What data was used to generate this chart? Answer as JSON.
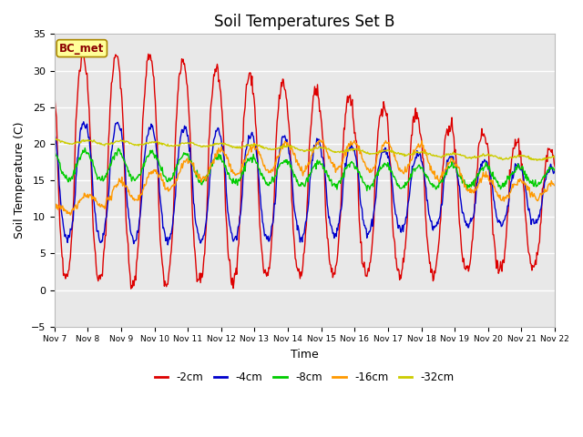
{
  "title": "Soil Temperatures Set B",
  "xlabel": "Time",
  "ylabel": "Soil Temperature (C)",
  "ylim": [
    -5,
    35
  ],
  "xlim": [
    0,
    15
  ],
  "annotation": "BC_met",
  "line_colors": {
    "-2cm": "#dd0000",
    "-4cm": "#0000cc",
    "-8cm": "#00cc00",
    "-16cm": "#ff9900",
    "-32cm": "#cccc00"
  },
  "legend_labels": [
    "-2cm",
    "-4cm",
    "-8cm",
    "-16cm",
    "-32cm"
  ],
  "xtick_labels": [
    "Nov 7",
    "Nov 8",
    "Nov 9",
    "Nov 10",
    "Nov 11",
    "Nov 12",
    "Nov 13",
    "Nov 14",
    "Nov 15",
    "Nov 16",
    "Nov 17",
    "Nov 18",
    "Nov 19",
    "Nov 20",
    "Nov 21",
    "Nov 22"
  ],
  "background_color": "#e8e8e8",
  "fig_background": "#ffffff",
  "title_fontsize": 12,
  "axis_label_fontsize": 9
}
